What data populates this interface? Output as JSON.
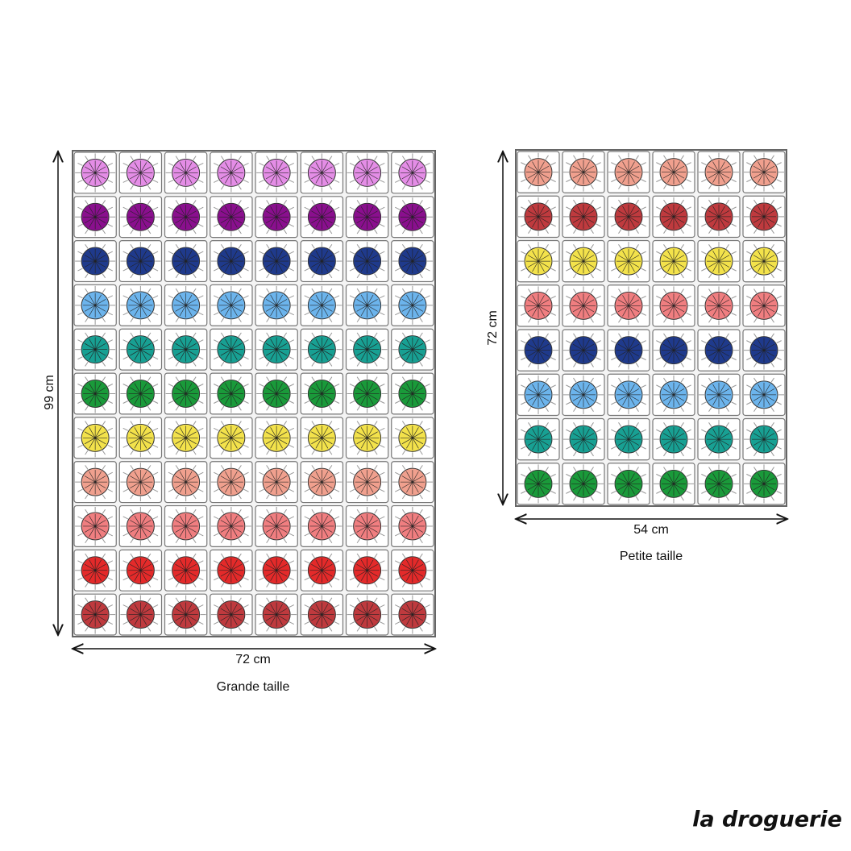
{
  "blankets": [
    {
      "height_label": "99 cm",
      "width_label": "72 cm",
      "caption": "Grande taille",
      "row_colors": [
        "#e48de6",
        "#8a0f8e",
        "#1f3a8c",
        "#6cb4ec",
        "#18a093",
        "#1a9a3a",
        "#f3e24b",
        "#f0a08e",
        "#f07e80",
        "#e42a2a",
        "#bf3a3e"
      ]
    },
    {
      "height_label": "72 cm",
      "width_label": "54 cm",
      "caption": "Petite taille",
      "row_colors": [
        "#f0a08e",
        "#bf3a3e",
        "#f3e24b",
        "#f07e80",
        "#1f3a8c",
        "#6cb4ec",
        "#18a093",
        "#1a9a3a"
      ]
    }
  ],
  "logo": "la droguerie"
}
